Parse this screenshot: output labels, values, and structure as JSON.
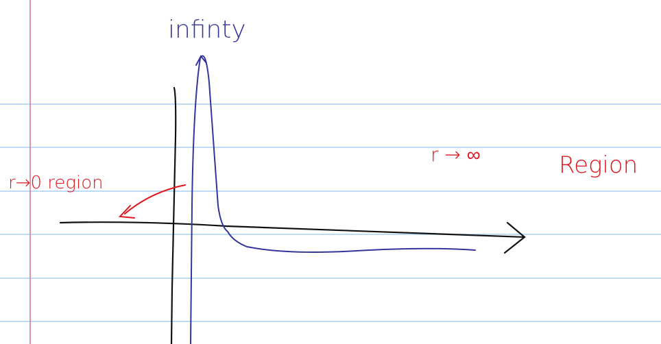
{
  "labels": {
    "top": "infinty",
    "left": "r→0 region",
    "right_symbol": "r → ∞",
    "right_word": "Region"
  }
}
